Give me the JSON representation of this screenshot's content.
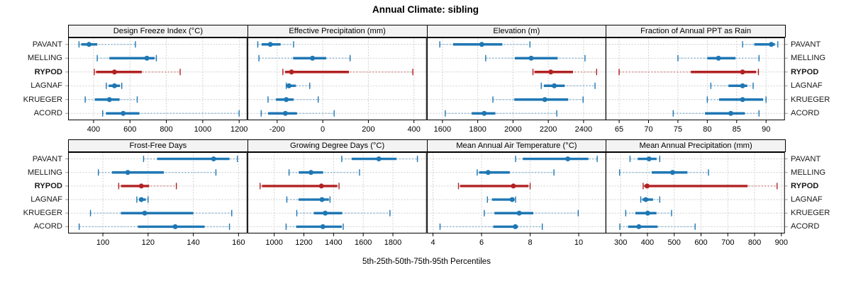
{
  "title": "Annual Climate: sibling",
  "caption": "5th-25th-50th-75th-95th Percentiles",
  "chart_data": {
    "type": "dotplot-intervals",
    "description": "Trellis dot plot of 5th-25th-50th-75th-95th percentile intervals per station; dot = median, thick bar = 25th-75th, light line with end caps = 5th-95th",
    "layout": {
      "rows": 2,
      "cols": 4,
      "grid": "dotted",
      "legend": "none",
      "row_labels_both_sides": true
    },
    "stations": [
      "PAVANT",
      "MELLING",
      "RYPOD",
      "LAGNAF",
      "KRUEGER",
      "ACORD"
    ],
    "highlighted_station": "RYPOD",
    "percentiles": [
      5,
      25,
      50,
      75,
      95
    ],
    "colors": {
      "normal": "#1f77b4",
      "normal_light": "rgba(31,119,180,0.38)",
      "highlight": "#b22222",
      "highlight_light": "rgba(178,34,34,0.38)",
      "grid": "#c9c9c9",
      "border": "#000000",
      "header_bg": "#f3f3f3",
      "edge_tick": "#999999"
    },
    "panels": [
      {
        "title": "Design Freeze Index (°C)",
        "xlim": [
          260,
          1245
        ],
        "ticks": [
          400,
          600,
          800,
          1000,
          1200
        ],
        "values": [
          [
            320,
            332,
            375,
            420,
            630
          ],
          [
            420,
            487,
            693,
            735,
            745
          ],
          [
            404,
            414,
            515,
            665,
            876
          ],
          [
            470,
            483,
            515,
            545,
            555
          ],
          [
            354,
            407,
            487,
            543,
            640
          ],
          [
            450,
            468,
            563,
            652,
            1200
          ]
        ]
      },
      {
        "title": "Effective Precipitation (mm)",
        "xlim": [
          -330,
          456
        ],
        "ticks": [
          -200,
          0,
          200,
          400
        ],
        "values": [
          [
            -285,
            -268,
            -230,
            -185,
            -128
          ],
          [
            -280,
            -130,
            -45,
            15,
            120
          ],
          [
            -175,
            -165,
            -137,
            115,
            395
          ],
          [
            -160,
            -155,
            -148,
            -118,
            -57
          ],
          [
            -240,
            -205,
            -160,
            -128,
            -20
          ],
          [
            -270,
            -240,
            -164,
            -113,
            50
          ]
        ]
      },
      {
        "title": "Elevation (m)",
        "xlim": [
          1512,
          2528
        ],
        "ticks": [
          1600,
          1800,
          2000,
          2200,
          2400
        ],
        "values": [
          [
            1585,
            1660,
            1823,
            1940,
            2096
          ],
          [
            1845,
            2010,
            2103,
            2253,
            2408
          ],
          [
            2113,
            2122,
            2214,
            2340,
            2474
          ],
          [
            2160,
            2175,
            2234,
            2293,
            2465
          ],
          [
            1886,
            2007,
            2180,
            2313,
            2397
          ],
          [
            1616,
            1766,
            1837,
            1900,
            2248
          ]
        ]
      },
      {
        "title": "Fraction of Annual PPT as Rain",
        "xlim": [
          62.7,
          93.2
        ],
        "ticks": [
          65,
          70,
          75,
          80,
          85,
          90
        ],
        "values": [
          [
            86,
            88,
            90.9,
            91.5,
            92
          ],
          [
            75,
            80,
            81.9,
            84.8,
            88.8
          ],
          [
            65,
            77.2,
            86,
            88.3,
            88.7
          ],
          [
            80.6,
            83.6,
            86,
            86.8,
            87.8
          ],
          [
            80,
            82,
            86,
            89.5,
            90
          ],
          [
            74.2,
            79.6,
            84,
            86.4,
            88.8
          ]
        ]
      },
      {
        "title": "Frost-Free Days",
        "xlim": [
          84.6,
          163.9
        ],
        "ticks": [
          100,
          120,
          140,
          160
        ],
        "values": [
          [
            118,
            124,
            149,
            156,
            159.5
          ],
          [
            98,
            104,
            111,
            127,
            150
          ],
          [
            107,
            108,
            117,
            120.5,
            132.5
          ],
          [
            115,
            116,
            117,
            119,
            120
          ],
          [
            94.5,
            108,
            118.5,
            140,
            157
          ],
          [
            89.5,
            115.5,
            132,
            145,
            156
          ]
        ]
      },
      {
        "title": "Growing Degree Days (°C)",
        "xlim": [
          820,
          2028
        ],
        "ticks": [
          1000,
          1200,
          1400,
          1600,
          1800
        ],
        "values": [
          [
            1455,
            1522,
            1705,
            1824,
            1965
          ],
          [
            1100,
            1165,
            1248,
            1330,
            1575
          ],
          [
            905,
            918,
            1318,
            1425,
            1437
          ],
          [
            1085,
            1164,
            1322,
            1368,
            1376
          ],
          [
            1152,
            1267,
            1344,
            1458,
            1780
          ],
          [
            1080,
            1148,
            1328,
            1455,
            1465
          ]
        ]
      },
      {
        "title": "Mean Annual Air Temperature (°C)",
        "xlim": [
          3.75,
          11.13
        ],
        "ticks": [
          4,
          6,
          8,
          10
        ],
        "values": [
          [
            7.4,
            7.7,
            9.55,
            10.4,
            10.76
          ],
          [
            5.82,
            5.9,
            6.27,
            7.16,
            8.98
          ],
          [
            5.05,
            5.12,
            7.31,
            7.93,
            8.0
          ],
          [
            6.24,
            6.43,
            7.26,
            7.36,
            7.4
          ],
          [
            6.11,
            6.53,
            7.55,
            8.13,
            9.98
          ],
          [
            4.29,
            6.48,
            7.39,
            7.5,
            8.5
          ]
        ]
      },
      {
        "title": "Mean Annual Precipitation (mm)",
        "xlim": [
          244,
          913
        ],
        "ticks": [
          300,
          400,
          500,
          600,
          700,
          800,
          900
        ],
        "values": [
          [
            335,
            364,
            406,
            434,
            446
          ],
          [
            296,
            416,
            494,
            549,
            628
          ],
          [
            384,
            388,
            399,
            774,
            884
          ],
          [
            375,
            381,
            394,
            421,
            446
          ],
          [
            319,
            355,
            401,
            434,
            490
          ],
          [
            297,
            328,
            368,
            438,
            578
          ]
        ]
      }
    ]
  }
}
